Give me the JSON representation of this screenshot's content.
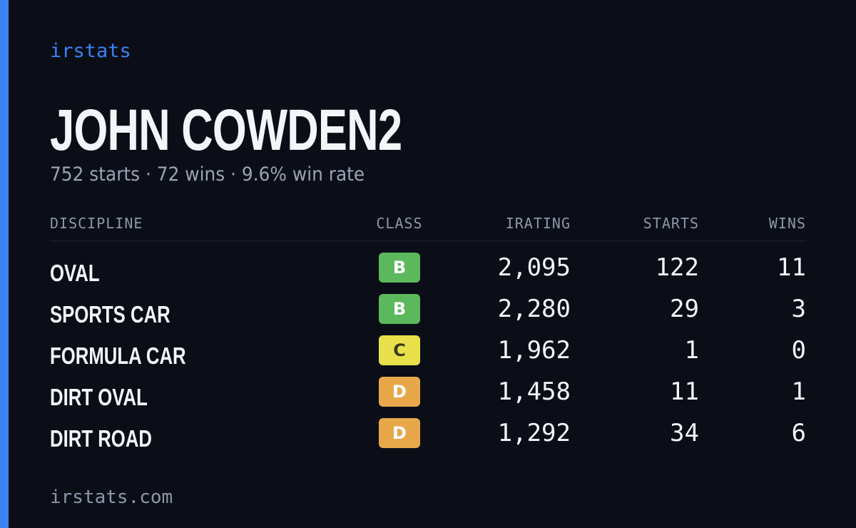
{
  "brand": "irstats",
  "profile": {
    "name": "JOHN COWDEN2",
    "summary": "752 starts · 72 wins · 9.6% win rate"
  },
  "table": {
    "headers": [
      "DISCIPLINE",
      "CLASS",
      "IRATING",
      "STARTS",
      "WINS"
    ],
    "rows": [
      {
        "discipline": "OVAL",
        "class": "B",
        "class_color": "#5cb85c",
        "irating": "2,095",
        "starts": "122",
        "wins": "11"
      },
      {
        "discipline": "SPORTS CAR",
        "class": "B",
        "class_color": "#5cb85c",
        "irating": "2,280",
        "starts": "29",
        "wins": "3"
      },
      {
        "discipline": "FORMULA CAR",
        "class": "C",
        "class_color": "#e8e04a",
        "irating": "1,962",
        "starts": "1",
        "wins": "0"
      },
      {
        "discipline": "DIRT OVAL",
        "class": "D",
        "class_color": "#e8a84a",
        "irating": "1,458",
        "starts": "11",
        "wins": "1"
      },
      {
        "discipline": "DIRT ROAD",
        "class": "D",
        "class_color": "#e8a84a",
        "irating": "1,292",
        "starts": "34",
        "wins": "6"
      }
    ]
  },
  "footer": "irstats.com"
}
